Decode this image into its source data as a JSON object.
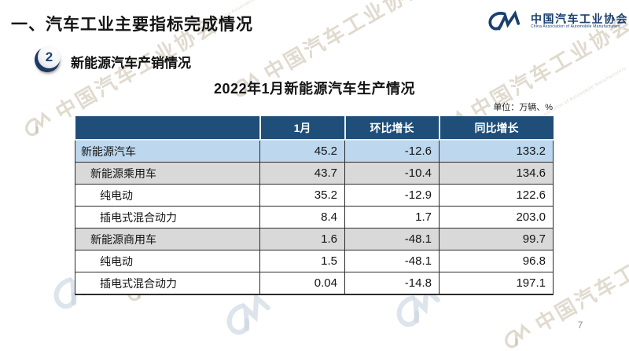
{
  "slide": {
    "section_title": "一、汽车工业主要指标完成情况",
    "badge_number": "2",
    "subsection_title": "新能源汽车产销情况",
    "table_title": "2022年1月新能源汽车生产情况",
    "unit_label": "单位：万辆、%",
    "page_number": "7"
  },
  "logo": {
    "name_cn": "中国汽车工业协会",
    "name_en": "China Association of Automobile Manufacturers"
  },
  "watermark": {
    "text_cn": "中国汽车工业协会",
    "text_en": "China Association of Automobile Manufacturers"
  },
  "table": {
    "headers": [
      "",
      "1月",
      "环比增长",
      "同比增长"
    ],
    "rows": [
      {
        "label": "新能源汽车",
        "values": [
          "45.2",
          "-12.6",
          "133.2"
        ],
        "indent": 0,
        "bg": "highlight"
      },
      {
        "label": "新能源乘用车",
        "values": [
          "43.7",
          "-10.4",
          "134.6"
        ],
        "indent": 1,
        "bg": "gray"
      },
      {
        "label": "纯电动",
        "values": [
          "35.2",
          "-12.9",
          "122.6"
        ],
        "indent": 2,
        "bg": "white"
      },
      {
        "label": "插电式混合动力",
        "values": [
          "8.4",
          "1.7",
          "203.0"
        ],
        "indent": 2,
        "bg": "white"
      },
      {
        "label": "新能源商用车",
        "values": [
          "1.6",
          "-48.1",
          "99.7"
        ],
        "indent": 1,
        "bg": "gray"
      },
      {
        "label": "纯电动",
        "values": [
          "1.5",
          "-48.1",
          "96.8"
        ],
        "indent": 2,
        "bg": "white"
      },
      {
        "label": "插电式混合动力",
        "values": [
          "0.04",
          "-14.8",
          "197.1"
        ],
        "indent": 2,
        "bg": "white"
      }
    ]
  },
  "colors": {
    "header_bg": "#1f4e79",
    "row_highlight": "#bdd7ee",
    "row_gray": "#d9d9d9",
    "logo_navy": "#1b3f6e"
  }
}
